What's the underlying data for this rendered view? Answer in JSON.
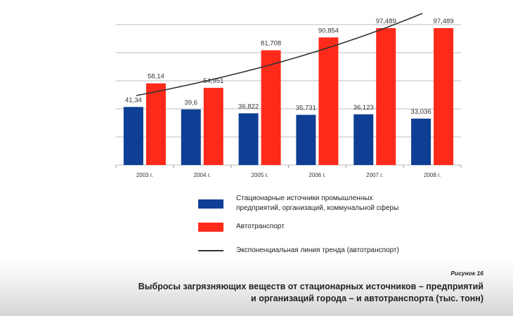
{
  "chart_data": {
    "type": "bar",
    "categories": [
      "2003 г.",
      "2004 г.",
      "2005 г.",
      "2006 г.",
      "2007 г.",
      "2008 г."
    ],
    "series": [
      {
        "name": "Стационарные источники промышленных предприятий, организаций, коммунальной сферы",
        "values": [
          41.34,
          39.6,
          36.822,
          35.731,
          36.123,
          33.036
        ],
        "labels": [
          "41,34",
          "39,6",
          "36,822",
          "35,731",
          "36,123",
          "33,036"
        ],
        "color": "#0e3f95"
      },
      {
        "name": "Автотранспорт",
        "values": [
          58.14,
          54.951,
          81.708,
          90.854,
          97.489,
          97.489
        ],
        "labels": [
          "58,14",
          "54,951",
          "81,708",
          "90,854",
          "97,489",
          "97,489"
        ],
        "color": "#ff2a1a"
      }
    ],
    "trendline": {
      "name": "Экспоненциальная линия тренда (автотранспорт)",
      "type": "exponential",
      "start_value": 49.5,
      "end_value": 108,
      "color": "#333333"
    },
    "ylim": [
      0,
      100
    ],
    "gridlines": [
      0,
      20,
      40,
      60,
      80,
      100
    ],
    "legend_labels": {
      "stationary": "Стационарные источники промышленных\nпредприятий, организаций, коммунальной сферы",
      "auto": "Автотранспорт",
      "trend": "Экспоненциальная линия тренда (автотранспорт)"
    }
  },
  "caption": {
    "figure": "Рисунок 16",
    "title": "Выбросы загрязняющих веществ от стационарных источников – предприятий\nи организаций города – и автотранспорта (тыс. тонн)"
  }
}
